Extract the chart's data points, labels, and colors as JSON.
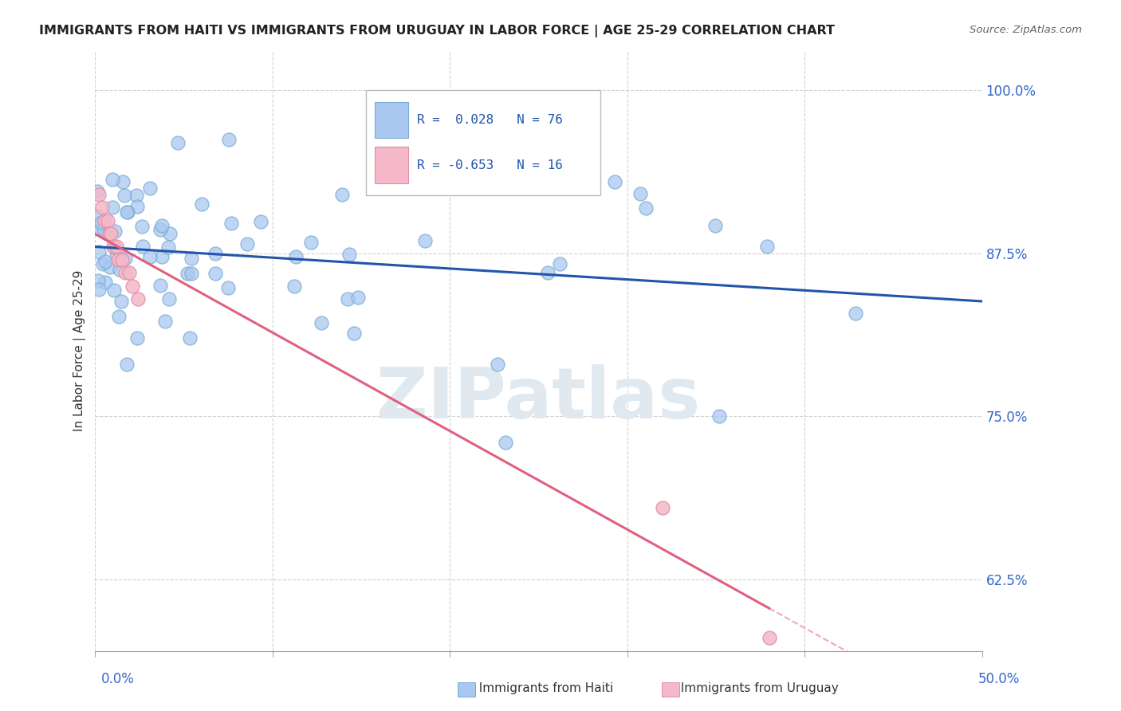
{
  "title": "IMMIGRANTS FROM HAITI VS IMMIGRANTS FROM URUGUAY IN LABOR FORCE | AGE 25-29 CORRELATION CHART",
  "source": "Source: ZipAtlas.com",
  "ylabel": "In Labor Force | Age 25-29",
  "yticks": [
    0.625,
    0.75,
    0.875,
    1.0
  ],
  "ytick_labels": [
    "62.5%",
    "75.0%",
    "87.5%",
    "100.0%"
  ],
  "xlim": [
    0.0,
    0.5
  ],
  "ylim": [
    0.57,
    1.03
  ],
  "R_haiti": 0.028,
  "N_haiti": 76,
  "R_uruguay": -0.653,
  "N_uruguay": 16,
  "haiti_color": "#a8c8f0",
  "haiti_edge_color": "#7aaad4",
  "uruguay_color": "#f4b8c8",
  "uruguay_edge_color": "#e090a8",
  "haiti_line_color": "#2255aa",
  "uruguay_line_color": "#e06080",
  "background_color": "#ffffff",
  "grid_color": "#cccccc",
  "watermark_color": "#e0e8f0"
}
